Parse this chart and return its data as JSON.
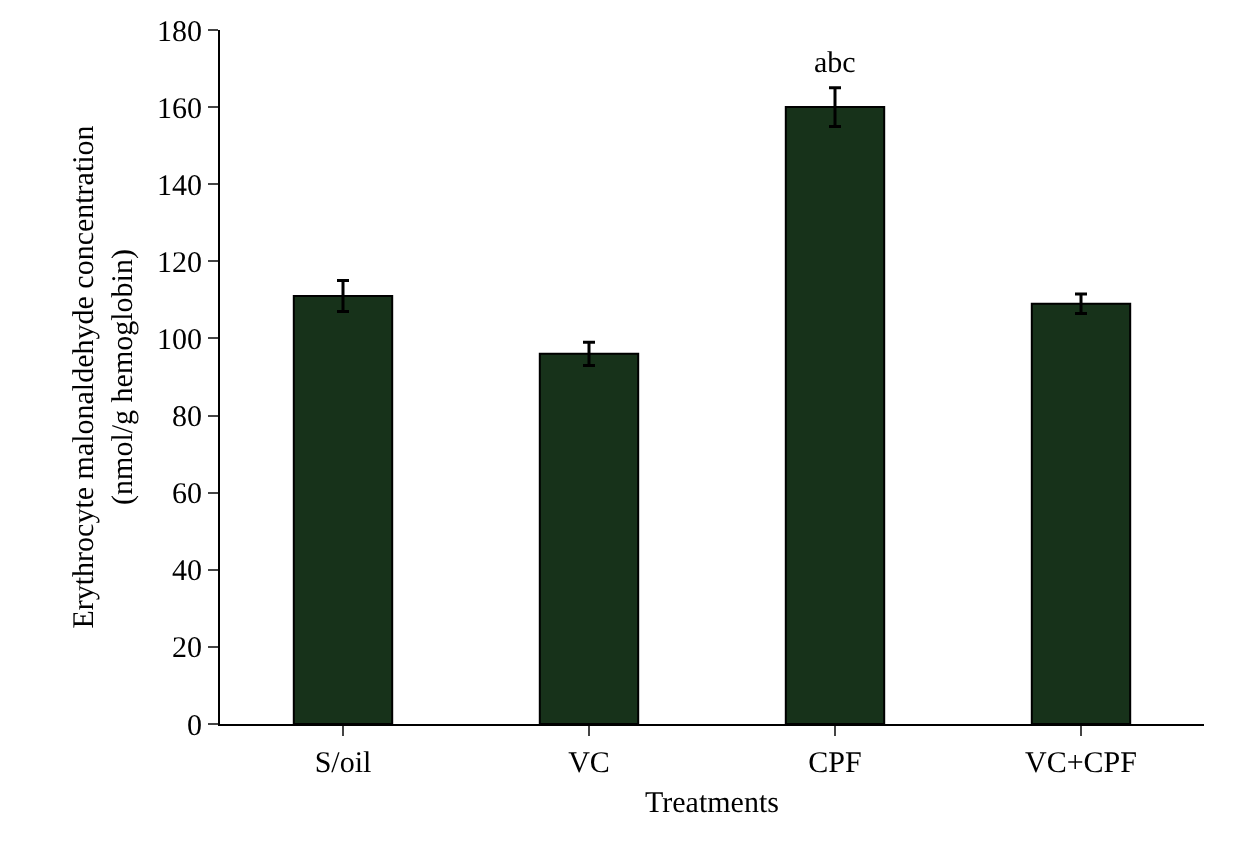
{
  "chart_data": {
    "type": "bar",
    "categories": [
      "S/oil",
      "VC",
      "CPF",
      "VC+CPF"
    ],
    "values": [
      111,
      96,
      160,
      109
    ],
    "errors": [
      4,
      3,
      5,
      2.5
    ],
    "color": "#17321a",
    "xlabel": "Treatments",
    "ylabel": "Erythrocyte malonaldehyde concentration\n(nmol/g hemoglobin)",
    "ylim": [
      0,
      180
    ],
    "yticks": [
      0,
      20,
      40,
      60,
      80,
      100,
      120,
      140,
      160,
      180
    ],
    "annotations": [
      {
        "text": "abc",
        "x": "CPF",
        "y": 165
      }
    ]
  }
}
